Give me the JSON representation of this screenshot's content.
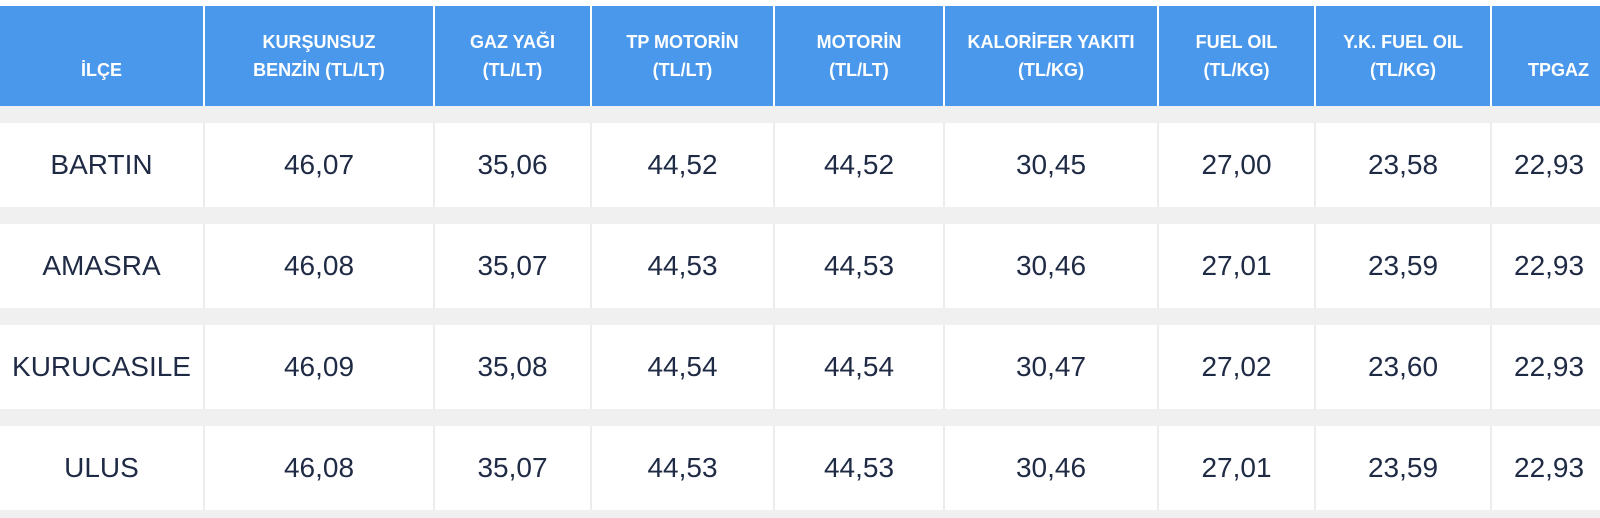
{
  "table": {
    "columns": [
      {
        "line1": "",
        "line2": "İLÇE"
      },
      {
        "line1": "KURŞUNSUZ",
        "line2": "BENZİN (TL/LT)"
      },
      {
        "line1": "GAZ YAĞI",
        "line2": "(TL/LT)"
      },
      {
        "line1": "TP MOTORİN",
        "line2": "(TL/LT)"
      },
      {
        "line1": "MOTORİN",
        "line2": "(TL/LT)"
      },
      {
        "line1": "KALORİFER YAKITI",
        "line2": "(TL/KG)"
      },
      {
        "line1": "FUEL OIL",
        "line2": "(TL/KG)"
      },
      {
        "line1": "Y.K. FUEL OIL",
        "line2": "(TL/KG)"
      },
      {
        "line1": "",
        "line2": "TPGAZ"
      }
    ],
    "rows": [
      [
        "BARTIN",
        "46,07",
        "35,06",
        "44,52",
        "44,52",
        "30,45",
        "27,00",
        "23,58",
        "22,93"
      ],
      [
        "AMASRA",
        "46,08",
        "35,07",
        "44,53",
        "44,53",
        "30,46",
        "27,01",
        "23,59",
        "22,93"
      ],
      [
        "KURUCASILE",
        "46,09",
        "35,08",
        "44,54",
        "44,54",
        "30,47",
        "27,02",
        "23,60",
        "22,93"
      ],
      [
        "ULUS",
        "46,08",
        "35,07",
        "44,53",
        "44,53",
        "30,46",
        "27,01",
        "23,59",
        "22,93"
      ]
    ]
  },
  "colors": {
    "header_bg": "#4a98ec",
    "header_text": "#ffffff",
    "row_bg": "#ffffff",
    "gap_bg": "#f0f0f0",
    "cell_text": "#1f2a44"
  }
}
